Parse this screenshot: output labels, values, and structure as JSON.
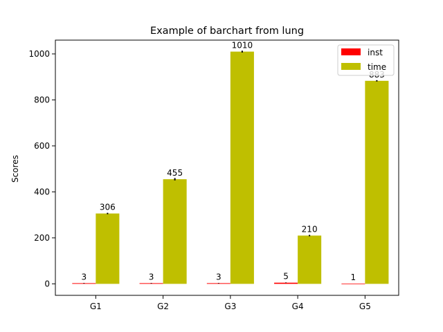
{
  "chart_data": {
    "type": "bar",
    "title": "Example of barchart from lung",
    "xlabel": "",
    "ylabel": "Scores",
    "categories": [
      "G1",
      "G2",
      "G3",
      "G4",
      "G5"
    ],
    "series": [
      {
        "name": "inst",
        "color": "#ff0000",
        "values": [
          3,
          3,
          3,
          5,
          1
        ],
        "errors": [
          1,
          1,
          1,
          1,
          0
        ]
      },
      {
        "name": "time",
        "color": "#bfbf00",
        "values": [
          306,
          455,
          1010,
          210,
          883
        ],
        "errors": [
          3,
          5,
          4,
          3,
          3
        ]
      }
    ],
    "data_labels": [
      [
        "3",
        "3",
        "3",
        "5",
        "1"
      ],
      [
        "306",
        "455",
        "1010",
        "210",
        "883"
      ]
    ],
    "yticks": [
      0,
      200,
      400,
      600,
      800,
      1000
    ],
    "ytick_labels": [
      "0",
      "200",
      "400",
      "600",
      "800",
      "1000"
    ],
    "ylim": [
      -50,
      1060
    ],
    "grid": false,
    "legend_position": "top-right"
  }
}
